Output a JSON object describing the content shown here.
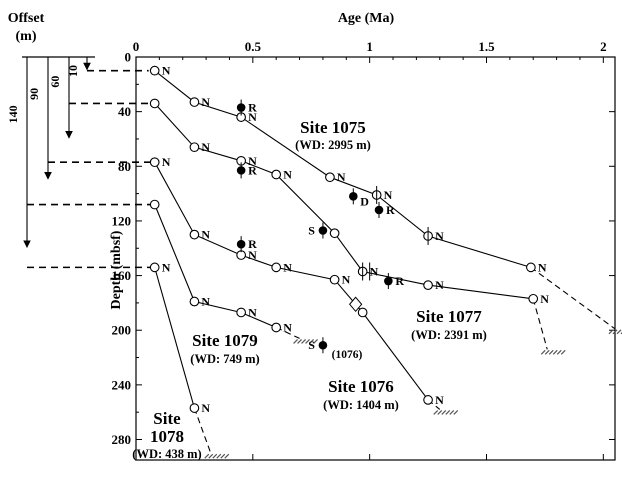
{
  "chart_data": {
    "type": "scatter",
    "x_axis": {
      "title": "Age (Ma)",
      "position": "top",
      "range": [
        0,
        2.05
      ],
      "ticks": [
        "0",
        "0.5",
        "1",
        "1.5",
        "2"
      ],
      "tick_values": [
        0,
        0.5,
        1,
        1.5,
        2
      ]
    },
    "y_axis": {
      "title": "Depth (mbsf)",
      "range": [
        0,
        295
      ],
      "inverted": true,
      "ticks": [
        "0",
        "40",
        "80",
        "120",
        "160",
        "200",
        "240",
        "280"
      ],
      "tick_values": [
        0,
        40,
        80,
        120,
        160,
        200,
        240,
        280
      ]
    },
    "offset_scale": {
      "title": "Offset",
      "unit": "(m)",
      "offsets": [
        {
          "label": "10",
          "value": 10
        },
        {
          "label": "60",
          "value": 60
        },
        {
          "label": "90",
          "value": 90
        },
        {
          "label": "140",
          "value": 140
        }
      ]
    },
    "sites": [
      {
        "title": "Site 1075",
        "subtitle": "(WD: 2995 m)",
        "points": [
          {
            "age": 0.08,
            "depth": 10,
            "label": "N"
          },
          {
            "age": 0.25,
            "depth": 33,
            "label": "N"
          },
          {
            "age": 0.45,
            "depth": 44,
            "label": "N"
          },
          {
            "age": 0.83,
            "depth": 88,
            "label": "N"
          },
          {
            "age": 1.03,
            "depth": 101,
            "label": "N"
          },
          {
            "age": 1.25,
            "depth": 131,
            "label": "N"
          },
          {
            "age": 1.69,
            "depth": 154,
            "label": "N"
          }
        ],
        "extension": [
          [
            1.69,
            154
          ],
          [
            2.05,
            199
          ]
        ]
      },
      {
        "title": "Site 1077",
        "subtitle": "(WD: 2391 m)",
        "points": [
          {
            "age": 0.08,
            "depth": 34,
            "label": ""
          },
          {
            "age": 0.25,
            "depth": 66,
            "label": "N"
          },
          {
            "age": 0.45,
            "depth": 76,
            "label": "N"
          },
          {
            "age": 0.6,
            "depth": 86,
            "label": "N"
          },
          {
            "age": 0.85,
            "depth": 129,
            "label": ""
          },
          {
            "age": 0.97,
            "depth": 157,
            "label": "N"
          },
          {
            "age": 1.25,
            "depth": 167,
            "label": "N"
          },
          {
            "age": 1.7,
            "depth": 177,
            "label": "N"
          }
        ],
        "extension": [
          [
            1.7,
            177
          ],
          [
            1.76,
            214
          ]
        ]
      },
      {
        "title": "Site 1076",
        "subtitle": "(WD: 1404 m)",
        "points": [
          {
            "age": 0.08,
            "depth": 77,
            "label": "N"
          },
          {
            "age": 0.25,
            "depth": 130,
            "label": "N"
          },
          {
            "age": 0.45,
            "depth": 145,
            "label": "N"
          },
          {
            "age": 0.6,
            "depth": 154,
            "label": "N"
          },
          {
            "age": 0.85,
            "depth": 163,
            "label": "N"
          },
          {
            "age": 0.97,
            "depth": 187,
            "label": ""
          },
          {
            "age": 1.25,
            "depth": 251,
            "label": "N"
          }
        ],
        "extension": [
          [
            1.25,
            251
          ],
          [
            1.3,
            258
          ]
        ]
      },
      {
        "title": "Site 1079",
        "subtitle": "(WD: 749 m)",
        "points": [
          {
            "age": 0.08,
            "depth": 108,
            "label": ""
          },
          {
            "age": 0.25,
            "depth": 179,
            "label": "N"
          },
          {
            "age": 0.45,
            "depth": 187,
            "label": "N"
          },
          {
            "age": 0.6,
            "depth": 198,
            "label": "N"
          }
        ],
        "extension": [
          [
            0.6,
            198
          ],
          [
            0.7,
            206
          ]
        ]
      },
      {
        "title": "Site",
        "title2": "1078",
        "subtitle": "(WD: 438 m)",
        "points": [
          {
            "age": 0.08,
            "depth": 154,
            "label": "N"
          },
          {
            "age": 0.25,
            "depth": 257,
            "label": "N"
          }
        ],
        "extension": [
          [
            0.25,
            257
          ],
          [
            0.32,
            290
          ]
        ]
      }
    ],
    "filled_markers": [
      {
        "age": 0.45,
        "depth": 37,
        "label": "R"
      },
      {
        "age": 0.45,
        "depth": 83,
        "label": "R"
      },
      {
        "age": 0.93,
        "depth": 102,
        "label": "D"
      },
      {
        "age": 1.04,
        "depth": 112,
        "label": "R"
      },
      {
        "age": 0.8,
        "depth": 127,
        "label": "S"
      },
      {
        "age": 0.45,
        "depth": 137,
        "label": "R"
      },
      {
        "age": 1.08,
        "depth": 164,
        "label": "R"
      },
      {
        "age": 0.8,
        "depth": 211,
        "label": "S"
      }
    ],
    "annotations": [
      {
        "text": "(1076)"
      }
    ],
    "diamond": {
      "age": 0.94,
      "depth": 181
    }
  }
}
